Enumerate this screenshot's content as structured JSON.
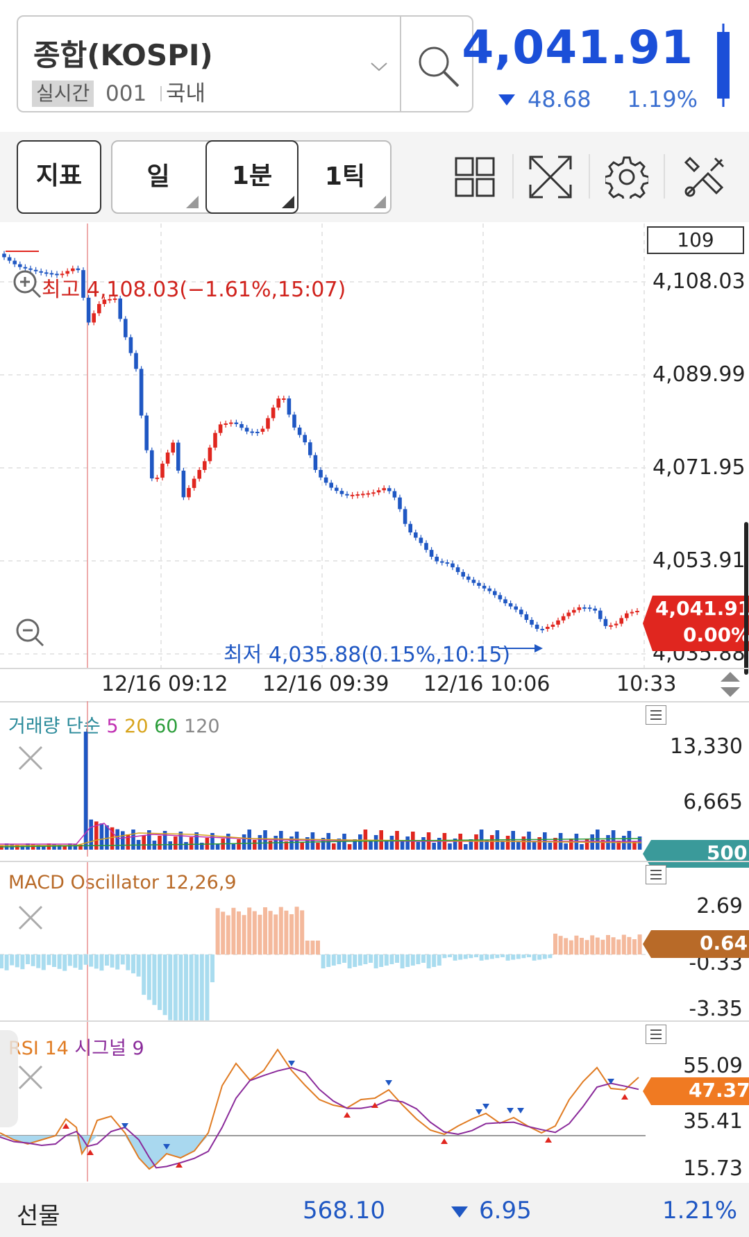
{
  "header": {
    "symbol_name": "종합(KOSPI)",
    "realtime_tag": "실시간",
    "code": "001",
    "market": "국내",
    "price": "4,041.91",
    "change": "48.68",
    "change_direction": "down",
    "change_pct": "1.19%"
  },
  "toolbar": {
    "indicator_label": "지표",
    "periods": [
      "일",
      "1분",
      "1틱"
    ],
    "selected_period": "1분"
  },
  "main_chart": {
    "count_box": "109",
    "high_label": "최고 4,108.03(−1.61%,15:07)",
    "low_label": "최저 4,035.88(0.15%,10:15)",
    "y_ticks": [
      "4,108.03",
      "4,089.99",
      "4,071.95",
      "4,053.91",
      "4,035.88"
    ],
    "current_price_tag": "4,041.91",
    "current_pct_tag": "0.00%",
    "time_labels": [
      "12/16 09:12",
      "12/16 09:39",
      "12/16 10:06",
      "10:33"
    ],
    "colors": {
      "up": "#e0261f",
      "down": "#1f57c3"
    }
  },
  "volume_panel": {
    "title_parts": [
      "거래량 단순",
      "5",
      "20",
      "60",
      "120"
    ],
    "y_ticks": [
      "13,330",
      "6,665"
    ],
    "current_tag": "500"
  },
  "macd_panel": {
    "title": "MACD Oscillator 12,26,9",
    "y_ticks": [
      "2.69",
      "-0.33",
      "-3.35"
    ],
    "current_tag": "0.64"
  },
  "rsi_panel": {
    "title_rsi": "RSI 14",
    "title_signal": "시그널 9",
    "y_ticks": [
      "55.09",
      "35.41",
      "15.73"
    ],
    "current_tag": "47.37"
  },
  "bottom_bar": {
    "label": "선물",
    "price": "568.10",
    "change": "6.95",
    "change_pct": "1.21%"
  }
}
